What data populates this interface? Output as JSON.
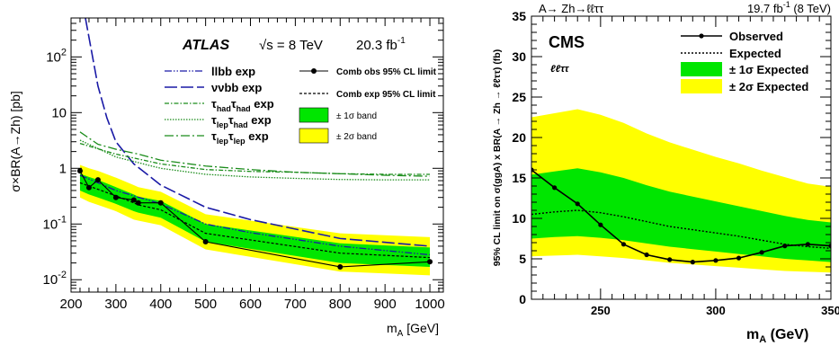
{
  "colors": {
    "band1": "#00e600",
    "band2": "#ffff00",
    "atlas_exp_green": "#1a8c1a",
    "line": "#000000",
    "llbb": "#1a1aa6",
    "vvbb": "#1a1aa6"
  },
  "chart_data": [
    {
      "type": "line",
      "panel": "left",
      "experiment": "ATLAS",
      "energy": "√s = 8 TeV",
      "lumi": "20.3 fb",
      "lumi_sup": "-1",
      "ylabel": "σ×BR(A→Zh) [pb]",
      "xlabel": "m",
      "xlabel_sub": "A",
      "xlabel_unit": "[GeV]",
      "yscale": "log",
      "xlim": [
        200,
        1030
      ],
      "ylim": [
        0.006,
        500
      ],
      "xticks": [
        200,
        300,
        400,
        500,
        600,
        700,
        800,
        900,
        1000
      ],
      "yticks": [
        {
          "v": 0.01,
          "base": "10",
          "exp": "-2"
        },
        {
          "v": 0.1,
          "base": "10",
          "exp": "-1"
        },
        {
          "v": 1,
          "base": "1",
          "exp": ""
        },
        {
          "v": 10,
          "base": "10",
          "exp": ""
        },
        {
          "v": 100,
          "base": "10",
          "exp": "2"
        }
      ],
      "legend_left": [
        {
          "name": "llbb exp",
          "sub": "",
          "style": "llbb"
        },
        {
          "name": "ννbb exp",
          "sub": "",
          "style": "vvbb"
        },
        {
          "parts": [
            [
              "τ",
              ""
            ],
            [
              "had",
              "sub"
            ],
            [
              "τ",
              ""
            ],
            [
              "had",
              "sub"
            ],
            [
              " exp",
              ""
            ]
          ],
          "style": "hadhad"
        },
        {
          "parts": [
            [
              "τ",
              ""
            ],
            [
              "lep",
              "sub"
            ],
            [
              "τ",
              ""
            ],
            [
              "had",
              "sub"
            ],
            [
              " exp",
              ""
            ]
          ],
          "style": "lephad"
        },
        {
          "parts": [
            [
              "τ",
              ""
            ],
            [
              "lep",
              "sub"
            ],
            [
              "τ",
              ""
            ],
            [
              "lep",
              "sub"
            ],
            [
              " exp",
              ""
            ]
          ],
          "style": "leplep"
        }
      ],
      "legend_right": [
        {
          "name": "Comb obs 95% CL limit",
          "style": "obs"
        },
        {
          "name": "Comb exp 95% CL limit",
          "style": "exp"
        },
        {
          "name": "± 1σ band",
          "style": "band1"
        },
        {
          "name": "± 2σ band",
          "style": "band2"
        }
      ],
      "x": [
        220,
        240,
        260,
        300,
        340,
        350,
        400,
        500,
        800,
        1000
      ],
      "observed": [
        0.9,
        0.45,
        0.62,
        0.3,
        0.27,
        0.24,
        0.24,
        0.048,
        0.017,
        0.021
      ],
      "expected": [
        0.55,
        0.48,
        0.42,
        0.32,
        0.24,
        0.22,
        0.18,
        0.068,
        0.03,
        0.025
      ],
      "band1_lo": [
        0.4,
        0.34,
        0.3,
        0.23,
        0.17,
        0.16,
        0.13,
        0.048,
        0.02,
        0.017
      ],
      "band1_hi": [
        0.8,
        0.7,
        0.62,
        0.46,
        0.34,
        0.31,
        0.26,
        0.1,
        0.045,
        0.038
      ],
      "band2_lo": [
        0.3,
        0.25,
        0.22,
        0.17,
        0.12,
        0.115,
        0.095,
        0.035,
        0.014,
        0.012
      ],
      "band2_hi": [
        1.15,
        1.0,
        0.9,
        0.68,
        0.5,
        0.46,
        0.38,
        0.15,
        0.068,
        0.058
      ],
      "series": [
        {
          "name": "llbb exp",
          "style": "llbb",
          "x": [
            220,
            260,
            300,
            400,
            500,
            600,
            800,
            1000
          ],
          "values": [
            0.75,
            0.55,
            0.4,
            0.23,
            0.1,
            0.07,
            0.04,
            0.028
          ]
        },
        {
          "name": "ννbb exp",
          "style": "vvbb",
          "x": [
            232,
            260,
            280,
            300,
            340,
            400,
            500,
            600,
            800,
            1000
          ],
          "values": [
            500,
            30,
            8,
            3,
            1.2,
            0.5,
            0.2,
            0.12,
            0.055,
            0.04
          ]
        },
        {
          "name": "τhadτhad exp",
          "style": "hadhad",
          "x": [
            220,
            300,
            400,
            500,
            600,
            700,
            800,
            900,
            1000
          ],
          "values": [
            2.8,
            1.8,
            1.2,
            0.95,
            0.88,
            0.85,
            0.8,
            0.78,
            0.78
          ]
        },
        {
          "name": "τlepτhad exp",
          "style": "lephad",
          "x": [
            220,
            300,
            400,
            500,
            600,
            700,
            800,
            900,
            1000
          ],
          "values": [
            3.2,
            1.6,
            1.0,
            0.78,
            0.7,
            0.66,
            0.63,
            0.62,
            0.62
          ]
        },
        {
          "name": "τlepτlep exp",
          "style": "leplep",
          "x": [
            220,
            260,
            300,
            350,
            400,
            500,
            600,
            700,
            800,
            900,
            1000
          ],
          "values": [
            4.5,
            2.7,
            2.2,
            1.8,
            1.4,
            1.1,
            0.95,
            0.85,
            0.8,
            0.75,
            0.72
          ]
        }
      ]
    },
    {
      "type": "line",
      "panel": "right",
      "experiment": "CMS",
      "process": "A→ Zh→ℓℓττ",
      "channel": "ℓℓττ",
      "lumi": "19.7 fb",
      "lumi_sup": "-1",
      "lumi_post": " (8 TeV)",
      "ylabel": "95% CL limit on σ(ggA) x BR(A → Zh → ℓℓττ) (fb)",
      "xlabel": "m",
      "xlabel_sub": "A",
      "xlabel_unit": " (GeV)",
      "xlim": [
        220,
        350
      ],
      "ylim": [
        0,
        35
      ],
      "xticks": [
        250,
        300,
        350
      ],
      "yticks": [
        0,
        5,
        10,
        15,
        20,
        25,
        30,
        35
      ],
      "legend": [
        {
          "name": "Observed",
          "style": "obs"
        },
        {
          "name": "Expected",
          "style": "exp"
        },
        {
          "name": "± 1σ Expected",
          "style": "band1"
        },
        {
          "name": "± 2σ Expected",
          "style": "band2"
        }
      ],
      "x": [
        220,
        230,
        240,
        250,
        260,
        270,
        280,
        290,
        300,
        310,
        320,
        330,
        340,
        350
      ],
      "observed": [
        16.0,
        13.8,
        11.8,
        9.2,
        6.8,
        5.5,
        4.9,
        4.6,
        4.8,
        5.1,
        5.8,
        6.6,
        6.8,
        6.6
      ],
      "expected": [
        10.5,
        10.8,
        11.0,
        10.7,
        10.2,
        9.6,
        9.0,
        8.6,
        8.2,
        7.8,
        7.3,
        6.8,
        6.5,
        6.3
      ],
      "band1_lo": [
        7.5,
        7.7,
        7.8,
        7.6,
        7.3,
        6.9,
        6.5,
        6.2,
        5.9,
        5.6,
        5.3,
        5.0,
        4.8,
        4.6
      ],
      "band1_hi": [
        15.4,
        15.8,
        16.2,
        15.7,
        15.0,
        14.1,
        13.3,
        12.7,
        12.1,
        11.5,
        10.9,
        10.3,
        9.8,
        9.5
      ],
      "band2_lo": [
        5.3,
        5.4,
        5.5,
        5.3,
        5.1,
        4.8,
        4.5,
        4.3,
        4.1,
        3.9,
        3.7,
        3.5,
        3.4,
        3.3
      ],
      "band2_hi": [
        22.5,
        23.0,
        23.5,
        22.8,
        21.8,
        20.5,
        19.4,
        18.5,
        17.6,
        16.8,
        15.9,
        15.1,
        14.3,
        13.9
      ]
    }
  ]
}
